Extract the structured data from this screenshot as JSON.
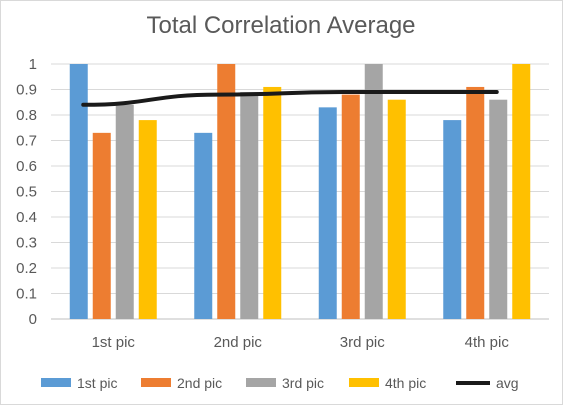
{
  "chart_data": {
    "type": "bar",
    "title": "Total Correlation Average",
    "categories": [
      "1st pic",
      "2nd pic",
      "3rd pic",
      "4th pic"
    ],
    "series": [
      {
        "name": "1st pic",
        "color": "#5b9bd5",
        "values": [
          1.0,
          0.73,
          0.83,
          0.78
        ]
      },
      {
        "name": "2nd pic",
        "color": "#ed7d31",
        "values": [
          0.73,
          1.0,
          0.88,
          0.91
        ]
      },
      {
        "name": "3rd pic",
        "color": "#a5a5a5",
        "values": [
          0.84,
          0.89,
          1.0,
          0.86
        ]
      },
      {
        "name": "4th pic",
        "color": "#ffc000",
        "values": [
          0.78,
          0.91,
          0.86,
          1.0
        ]
      }
    ],
    "line_series": {
      "name": "avg",
      "color": "#1a1a1a",
      "values": [
        0.84,
        0.88,
        0.89,
        0.89
      ]
    },
    "ylim": [
      0,
      1
    ],
    "yticks": [
      "0",
      "0.1",
      "0.2",
      "0.3",
      "0.4",
      "0.5",
      "0.6",
      "0.7",
      "0.8",
      "0.9",
      "1"
    ],
    "grid": true,
    "legend_position": "bottom",
    "xlabel": "",
    "ylabel": ""
  }
}
